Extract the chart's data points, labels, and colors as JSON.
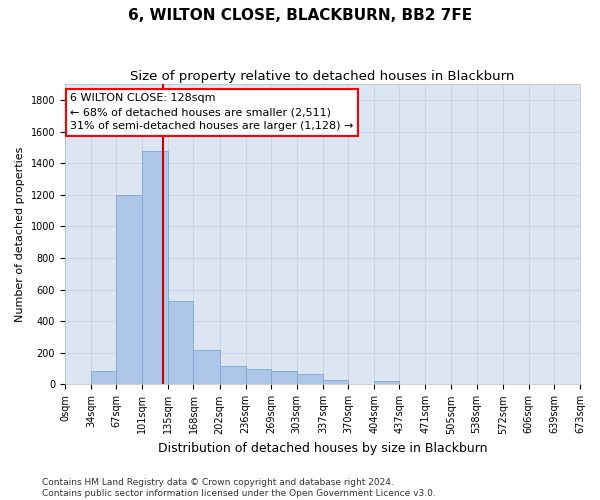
{
  "title": "6, WILTON CLOSE, BLACKBURN, BB2 7FE",
  "subtitle": "Size of property relative to detached houses in Blackburn",
  "xlabel": "Distribution of detached houses by size in Blackburn",
  "ylabel": "Number of detached properties",
  "bin_edges": [
    0,
    34,
    67,
    101,
    135,
    168,
    202,
    236,
    269,
    303,
    337,
    370,
    404,
    437,
    471,
    505,
    538,
    572,
    606,
    639,
    673
  ],
  "bar_heights": [
    0,
    85,
    1200,
    1480,
    530,
    220,
    115,
    100,
    85,
    65,
    30,
    0,
    22,
    0,
    0,
    0,
    0,
    0,
    0,
    0
  ],
  "bar_color": "#aec6e8",
  "bar_edgecolor": "#7da8d4",
  "property_size": 128,
  "annotation_line1": "6 WILTON CLOSE: 128sqm",
  "annotation_line2": "← 68% of detached houses are smaller (2,511)",
  "annotation_line3": "31% of semi-detached houses are larger (1,128) →",
  "annotation_box_color": "white",
  "annotation_box_edgecolor": "red",
  "vline_color": "#cc0000",
  "vline_x": 128,
  "grid_color": "#c8d4e8",
  "background_color": "#dce6f2",
  "ylim": [
    0,
    1900
  ],
  "yticks": [
    0,
    200,
    400,
    600,
    800,
    1000,
    1200,
    1400,
    1600,
    1800
  ],
  "xtick_labels": [
    "0sqm",
    "34sqm",
    "67sqm",
    "101sqm",
    "135sqm",
    "168sqm",
    "202sqm",
    "236sqm",
    "269sqm",
    "303sqm",
    "337sqm",
    "370sqm",
    "404sqm",
    "437sqm",
    "471sqm",
    "505sqm",
    "538sqm",
    "572sqm",
    "606sqm",
    "639sqm",
    "673sqm"
  ],
  "footer_line1": "Contains HM Land Registry data © Crown copyright and database right 2024.",
  "footer_line2": "Contains public sector information licensed under the Open Government Licence v3.0.",
  "title_fontsize": 11,
  "subtitle_fontsize": 9.5,
  "xlabel_fontsize": 9,
  "ylabel_fontsize": 8,
  "tick_fontsize": 7,
  "annotation_fontsize": 8,
  "footer_fontsize": 6.5
}
